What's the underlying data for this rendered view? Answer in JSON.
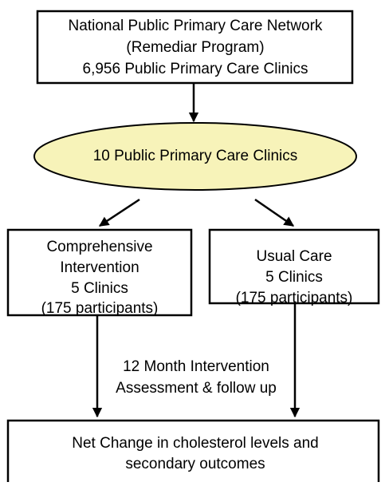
{
  "nodes": [
    {
      "lines": [
        "National Public Primary Care Network",
        "(Remediar Program)",
        "6,956 Public Primary Care Clinics"
      ]
    },
    {
      "lines": [
        "10 Public Primary Care Clinics"
      ]
    },
    {
      "lines": [
        "Comprehensive",
        "Intervention",
        "5 Clinics",
        "(175 participants)"
      ]
    },
    {
      "lines": [
        "Usual Care",
        "5 Clinics",
        "(175 participants)"
      ]
    },
    {
      "lines": [
        "Net Change  in cholesterol levels and",
        "secondary outcomes"
      ]
    }
  ],
  "edge_label": {
    "lines": [
      "12 Month Intervention",
      "Assessment & follow up"
    ]
  }
}
